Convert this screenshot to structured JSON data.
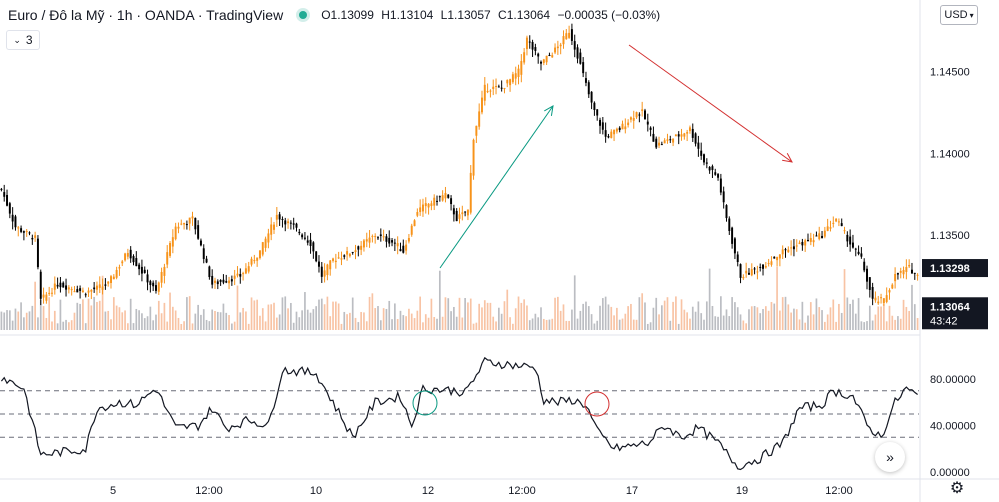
{
  "header": {
    "symbol_title": "Euro / Đô la Mỹ · 1h · OANDA · TradingView",
    "open": "O1.13099",
    "high": "H1.13104",
    "low": "L1.13057",
    "close": "C1.13064",
    "change": "−0.00035 (−0.03%)",
    "indicator_count": "3",
    "currency": "USD",
    "more_icon": "chevrons-right-icon",
    "settings_icon": "gear-icon"
  },
  "colors": {
    "bull": "#f7931a",
    "bear": "#000000",
    "up_arrow": "#089981",
    "down_arrow": "#d32f2f",
    "label_bg": "#131722"
  },
  "chart_data": [
    {
      "type": "candlestick",
      "title": "Euro / Đô la Mỹ · 1h · OANDA",
      "ylim": [
        1.1298,
        1.15
      ],
      "y_ticks": [
        "1.14500",
        "1.14000",
        "1.13500"
      ],
      "x_ticks": [
        "5",
        "12:00",
        "10",
        "12",
        "12:00",
        "17",
        "19",
        "12:00"
      ],
      "price_labels": {
        "marked_price": "1.13298",
        "last_price": "1.13064",
        "countdown": "43:42"
      },
      "approx_path": [
        {
          "i": 0,
          "p": 1.1378
        },
        {
          "i": 5,
          "p": 1.1355
        },
        {
          "i": 12,
          "p": 1.1348
        },
        {
          "i": 14,
          "p": 1.131
        },
        {
          "i": 20,
          "p": 1.132
        },
        {
          "i": 30,
          "p": 1.1315
        },
        {
          "i": 38,
          "p": 1.132
        },
        {
          "i": 45,
          "p": 1.134
        },
        {
          "i": 55,
          "p": 1.1315
        },
        {
          "i": 62,
          "p": 1.1355
        },
        {
          "i": 68,
          "p": 1.136
        },
        {
          "i": 75,
          "p": 1.132
        },
        {
          "i": 85,
          "p": 1.1325
        },
        {
          "i": 92,
          "p": 1.134
        },
        {
          "i": 98,
          "p": 1.1362
        },
        {
          "i": 104,
          "p": 1.1355
        },
        {
          "i": 110,
          "p": 1.1345
        },
        {
          "i": 114,
          "p": 1.1325
        },
        {
          "i": 118,
          "p": 1.1335
        },
        {
          "i": 125,
          "p": 1.134
        },
        {
          "i": 133,
          "p": 1.135
        },
        {
          "i": 140,
          "p": 1.1345
        },
        {
          "i": 143,
          "p": 1.134
        },
        {
          "i": 148,
          "p": 1.1365
        },
        {
          "i": 158,
          "p": 1.1375
        },
        {
          "i": 162,
          "p": 1.136
        },
        {
          "i": 166,
          "p": 1.1365
        },
        {
          "i": 168,
          "p": 1.141
        },
        {
          "i": 172,
          "p": 1.144
        },
        {
          "i": 178,
          "p": 1.144
        },
        {
          "i": 184,
          "p": 1.145
        },
        {
          "i": 187,
          "p": 1.147
        },
        {
          "i": 192,
          "p": 1.1455
        },
        {
          "i": 198,
          "p": 1.1465
        },
        {
          "i": 202,
          "p": 1.1475
        },
        {
          "i": 205,
          "p": 1.146
        },
        {
          "i": 210,
          "p": 1.143
        },
        {
          "i": 215,
          "p": 1.141
        },
        {
          "i": 220,
          "p": 1.1415
        },
        {
          "i": 226,
          "p": 1.1425
        },
        {
          "i": 228,
          "p": 1.1425
        },
        {
          "i": 233,
          "p": 1.1405
        },
        {
          "i": 240,
          "p": 1.141
        },
        {
          "i": 245,
          "p": 1.1415
        },
        {
          "i": 250,
          "p": 1.1395
        },
        {
          "i": 255,
          "p": 1.1385
        },
        {
          "i": 258,
          "p": 1.136
        },
        {
          "i": 263,
          "p": 1.1325
        },
        {
          "i": 270,
          "p": 1.133
        },
        {
          "i": 278,
          "p": 1.134
        },
        {
          "i": 285,
          "p": 1.1345
        },
        {
          "i": 292,
          "p": 1.135
        },
        {
          "i": 297,
          "p": 1.136
        },
        {
          "i": 302,
          "p": 1.1345
        },
        {
          "i": 306,
          "p": 1.1335
        },
        {
          "i": 310,
          "p": 1.131
        },
        {
          "i": 314,
          "p": 1.131
        },
        {
          "i": 318,
          "p": 1.1325
        },
        {
          "i": 323,
          "p": 1.133
        },
        {
          "i": 326,
          "p": 1.1325
        }
      ]
    },
    {
      "type": "line",
      "name": "oscillator",
      "ylim": [
        -5,
        105
      ],
      "y_ticks": [
        "80.00000",
        "40.00000",
        "0.00000"
      ],
      "levels": [
        70,
        50,
        30
      ],
      "approx_path": [
        {
          "i": 0,
          "v": 82
        },
        {
          "i": 8,
          "v": 72
        },
        {
          "i": 14,
          "v": 15
        },
        {
          "i": 30,
          "v": 20
        },
        {
          "i": 34,
          "v": 55
        },
        {
          "i": 42,
          "v": 60
        },
        {
          "i": 48,
          "v": 58
        },
        {
          "i": 55,
          "v": 72
        },
        {
          "i": 62,
          "v": 38
        },
        {
          "i": 70,
          "v": 40
        },
        {
          "i": 75,
          "v": 55
        },
        {
          "i": 80,
          "v": 38
        },
        {
          "i": 88,
          "v": 45
        },
        {
          "i": 95,
          "v": 40
        },
        {
          "i": 100,
          "v": 88
        },
        {
          "i": 112,
          "v": 85
        },
        {
          "i": 118,
          "v": 60
        },
        {
          "i": 125,
          "v": 30
        },
        {
          "i": 133,
          "v": 60
        },
        {
          "i": 142,
          "v": 65
        },
        {
          "i": 146,
          "v": 40
        },
        {
          "i": 150,
          "v": 72
        },
        {
          "i": 162,
          "v": 70
        },
        {
          "i": 165,
          "v": 68
        },
        {
          "i": 172,
          "v": 95
        },
        {
          "i": 182,
          "v": 92
        },
        {
          "i": 190,
          "v": 90
        },
        {
          "i": 193,
          "v": 62
        },
        {
          "i": 198,
          "v": 60
        },
        {
          "i": 203,
          "v": 62
        },
        {
          "i": 208,
          "v": 58
        },
        {
          "i": 212,
          "v": 35
        },
        {
          "i": 218,
          "v": 20
        },
        {
          "i": 230,
          "v": 25
        },
        {
          "i": 236,
          "v": 40
        },
        {
          "i": 242,
          "v": 30
        },
        {
          "i": 248,
          "v": 38
        },
        {
          "i": 255,
          "v": 25
        },
        {
          "i": 262,
          "v": 5
        },
        {
          "i": 270,
          "v": 12
        },
        {
          "i": 278,
          "v": 25
        },
        {
          "i": 284,
          "v": 55
        },
        {
          "i": 292,
          "v": 58
        },
        {
          "i": 296,
          "v": 70
        },
        {
          "i": 303,
          "v": 65
        },
        {
          "i": 308,
          "v": 40
        },
        {
          "i": 313,
          "v": 30
        },
        {
          "i": 318,
          "v": 60
        },
        {
          "i": 322,
          "v": 72
        },
        {
          "i": 326,
          "v": 65
        }
      ]
    }
  ]
}
